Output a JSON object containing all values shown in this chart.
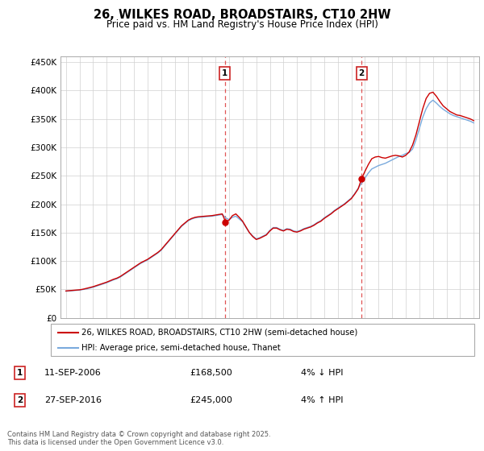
{
  "title": "26, WILKES ROAD, BROADSTAIRS, CT10 2HW",
  "subtitle": "Price paid vs. HM Land Registry's House Price Index (HPI)",
  "ytick_labels": [
    "£0",
    "£50K",
    "£100K",
    "£150K",
    "£200K",
    "£250K",
    "£300K",
    "£350K",
    "£400K",
    "£450K"
  ],
  "yticks": [
    0,
    50000,
    100000,
    150000,
    200000,
    250000,
    300000,
    350000,
    400000,
    450000
  ],
  "ylim": [
    0,
    460000
  ],
  "xlim_start": 1994.6,
  "xlim_end": 2025.4,
  "xticks": [
    1995,
    1996,
    1997,
    1998,
    1999,
    2000,
    2001,
    2002,
    2003,
    2004,
    2005,
    2006,
    2007,
    2008,
    2009,
    2010,
    2011,
    2012,
    2013,
    2014,
    2015,
    2016,
    2017,
    2018,
    2019,
    2020,
    2021,
    2022,
    2023,
    2024,
    2025
  ],
  "sale1_x": 2006.7,
  "sale1_y": 168500,
  "sale2_x": 2016.75,
  "sale2_y": 245000,
  "dashed_line_color": "#e05555",
  "line1_color": "#cc0000",
  "line2_color": "#7aaadd",
  "legend1_label": "26, WILKES ROAD, BROADSTAIRS, CT10 2HW (semi-detached house)",
  "legend2_label": "HPI: Average price, semi-detached house, Thanet",
  "annotation1_date": "11-SEP-2006",
  "annotation1_price": "£168,500",
  "annotation1_hpi": "4% ↓ HPI",
  "annotation2_date": "27-SEP-2016",
  "annotation2_price": "£245,000",
  "annotation2_hpi": "4% ↑ HPI",
  "footer": "Contains HM Land Registry data © Crown copyright and database right 2025.\nThis data is licensed under the Open Government Licence v3.0.",
  "hpi_data_x": [
    1995.0,
    1995.25,
    1995.5,
    1995.75,
    1996.0,
    1996.25,
    1996.5,
    1996.75,
    1997.0,
    1997.25,
    1997.5,
    1997.75,
    1998.0,
    1998.25,
    1998.5,
    1998.75,
    1999.0,
    1999.25,
    1999.5,
    1999.75,
    2000.0,
    2000.25,
    2000.5,
    2000.75,
    2001.0,
    2001.25,
    2001.5,
    2001.75,
    2002.0,
    2002.25,
    2002.5,
    2002.75,
    2003.0,
    2003.25,
    2003.5,
    2003.75,
    2004.0,
    2004.25,
    2004.5,
    2004.75,
    2005.0,
    2005.25,
    2005.5,
    2005.75,
    2006.0,
    2006.25,
    2006.5,
    2006.75,
    2007.0,
    2007.25,
    2007.5,
    2007.75,
    2008.0,
    2008.25,
    2008.5,
    2008.75,
    2009.0,
    2009.25,
    2009.5,
    2009.75,
    2010.0,
    2010.25,
    2010.5,
    2010.75,
    2011.0,
    2011.25,
    2011.5,
    2011.75,
    2012.0,
    2012.25,
    2012.5,
    2012.75,
    2013.0,
    2013.25,
    2013.5,
    2013.75,
    2014.0,
    2014.25,
    2014.5,
    2014.75,
    2015.0,
    2015.25,
    2015.5,
    2015.75,
    2016.0,
    2016.25,
    2016.5,
    2016.75,
    2017.0,
    2017.25,
    2017.5,
    2017.75,
    2018.0,
    2018.25,
    2018.5,
    2018.75,
    2019.0,
    2019.25,
    2019.5,
    2019.75,
    2020.0,
    2020.25,
    2020.5,
    2020.75,
    2021.0,
    2021.25,
    2021.5,
    2021.75,
    2022.0,
    2022.25,
    2022.5,
    2022.75,
    2023.0,
    2023.25,
    2023.5,
    2023.75,
    2024.0,
    2024.25,
    2024.5,
    2024.75,
    2025.0
  ],
  "hpi_data_y": [
    47000,
    47500,
    48000,
    48500,
    49000,
    50000,
    51000,
    52500,
    54000,
    56000,
    58000,
    60000,
    62000,
    64500,
    67000,
    69000,
    72000,
    76000,
    80000,
    84000,
    88000,
    92000,
    96000,
    99000,
    102000,
    106000,
    110000,
    114000,
    119000,
    126000,
    133000,
    140000,
    147000,
    154000,
    161000,
    166000,
    171000,
    174000,
    176000,
    177000,
    177500,
    178000,
    178500,
    179000,
    180000,
    181000,
    182000,
    176000,
    173000,
    177000,
    179000,
    174000,
    169000,
    159000,
    150000,
    144000,
    139000,
    141000,
    144000,
    147000,
    154000,
    159000,
    159000,
    156000,
    154000,
    157000,
    156000,
    153000,
    152000,
    154000,
    157000,
    159000,
    161000,
    164000,
    168000,
    171000,
    176000,
    180000,
    184000,
    189000,
    193000,
    197000,
    201000,
    206000,
    211000,
    219000,
    228000,
    237000,
    246000,
    255000,
    262000,
    265000,
    268000,
    270000,
    272000,
    275000,
    278000,
    281000,
    284000,
    286000,
    289000,
    291000,
    297000,
    313000,
    333000,
    353000,
    368000,
    378000,
    383000,
    378000,
    372000,
    367000,
    363000,
    359000,
    356000,
    354000,
    352000,
    350000,
    348000,
    346000,
    343000
  ],
  "price_data_x": [
    1995.0,
    1995.25,
    1995.5,
    1995.75,
    1996.0,
    1996.25,
    1996.5,
    1996.75,
    1997.0,
    1997.25,
    1997.5,
    1997.75,
    1998.0,
    1998.25,
    1998.5,
    1998.75,
    1999.0,
    1999.25,
    1999.5,
    1999.75,
    2000.0,
    2000.25,
    2000.5,
    2000.75,
    2001.0,
    2001.25,
    2001.5,
    2001.75,
    2002.0,
    2002.25,
    2002.5,
    2002.75,
    2003.0,
    2003.25,
    2003.5,
    2003.75,
    2004.0,
    2004.25,
    2004.5,
    2004.75,
    2005.0,
    2005.25,
    2005.5,
    2005.75,
    2006.0,
    2006.25,
    2006.5,
    2006.75,
    2007.0,
    2007.25,
    2007.5,
    2007.75,
    2008.0,
    2008.25,
    2008.5,
    2008.75,
    2009.0,
    2009.25,
    2009.5,
    2009.75,
    2010.0,
    2010.25,
    2010.5,
    2010.75,
    2011.0,
    2011.25,
    2011.5,
    2011.75,
    2012.0,
    2012.25,
    2012.5,
    2012.75,
    2013.0,
    2013.25,
    2013.5,
    2013.75,
    2014.0,
    2014.25,
    2014.5,
    2014.75,
    2015.0,
    2015.25,
    2015.5,
    2015.75,
    2016.0,
    2016.25,
    2016.5,
    2016.75,
    2017.0,
    2017.25,
    2017.5,
    2017.75,
    2018.0,
    2018.25,
    2018.5,
    2018.75,
    2019.0,
    2019.25,
    2019.5,
    2019.75,
    2020.0,
    2020.25,
    2020.5,
    2020.75,
    2021.0,
    2021.25,
    2021.5,
    2021.75,
    2022.0,
    2022.25,
    2022.5,
    2022.75,
    2023.0,
    2023.25,
    2023.5,
    2023.75,
    2024.0,
    2024.25,
    2024.5,
    2024.75,
    2025.0
  ],
  "price_data_y": [
    47500,
    48000,
    48500,
    49000,
    49500,
    50500,
    52000,
    53500,
    55000,
    57000,
    59000,
    61000,
    63000,
    65500,
    68000,
    70000,
    73000,
    77000,
    81000,
    85000,
    89000,
    93000,
    97000,
    100000,
    103000,
    107000,
    111000,
    115000,
    120000,
    127000,
    134000,
    141000,
    148000,
    155000,
    162000,
    167000,
    172000,
    175000,
    177000,
    178000,
    178500,
    179000,
    179500,
    180000,
    181000,
    182000,
    183000,
    168500,
    172000,
    180000,
    183000,
    177000,
    170000,
    160000,
    150000,
    143000,
    138000,
    140000,
    143000,
    146000,
    153000,
    158000,
    158000,
    155000,
    153000,
    156000,
    155000,
    152000,
    151000,
    153000,
    156000,
    158000,
    160000,
    163000,
    167000,
    170000,
    175000,
    179000,
    183000,
    188000,
    192000,
    196000,
    200000,
    205000,
    210000,
    218000,
    227000,
    245000,
    258000,
    270000,
    280000,
    283000,
    284000,
    282000,
    281000,
    283000,
    285000,
    286000,
    285000,
    283000,
    286000,
    292000,
    304000,
    322000,
    345000,
    368000,
    386000,
    395000,
    397000,
    390000,
    381000,
    373000,
    368000,
    363000,
    360000,
    357000,
    356000,
    354000,
    352000,
    350000,
    347000
  ]
}
